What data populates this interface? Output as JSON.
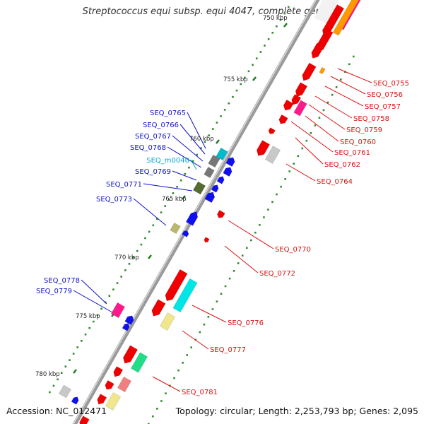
{
  "header": {
    "title": "Streptococcus equi subsp. equi 4047, complete genome"
  },
  "footer": {
    "accession": "Accession: NC_012471",
    "topology": "Topology: circular; Length: 2,253,793 bp; Genes: 2,095"
  },
  "colors": {
    "label_plus": "#1010cc",
    "label_minus": "#dd1010",
    "label_rna": "#00aacc",
    "backbone": "#888888",
    "tick": "#1f7a1f"
  },
  "kbp_labels": [
    "750 kbp",
    "755 kbp",
    "760 kbp",
    "765 kbp",
    "770 kbp",
    "775 kbp",
    "780 kbp"
  ],
  "gene_labels_plus": [
    "SEQ_0765",
    "SEQ_0766",
    "SEQ_0767",
    "SEQ_0768",
    "SEQ_m0040",
    "SEQ_0769",
    "SEQ_0771",
    "SEQ_0773",
    "SEQ_0778",
    "SEQ_0779"
  ],
  "gene_labels_minus": [
    "SEQ_0755",
    "SEQ_0756",
    "SEQ_0757",
    "SEQ_0758",
    "SEQ_0759",
    "SEQ_0760",
    "SEQ_0761",
    "SEQ_0762",
    "SEQ_0764",
    "SEQ_0770",
    "SEQ_0772",
    "SEQ_0776",
    "SEQ_0777",
    "SEQ_0781"
  ]
}
